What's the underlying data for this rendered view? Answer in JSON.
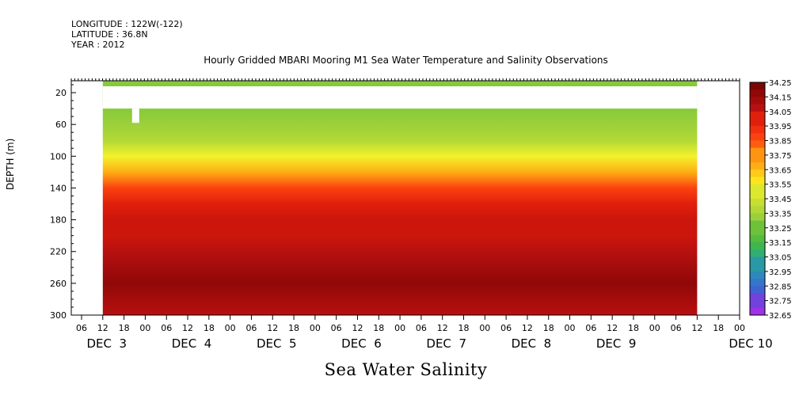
{
  "header": {
    "longitude": "LONGITUDE : 122W(-122)",
    "latitude": "LATITUDE : 36.8N",
    "year": "YEAR : 2012"
  },
  "chart_data": {
    "type": "heatmap",
    "title": "Hourly Gridded MBARI Mooring M1 Sea Water Temperature and Salinity Observations",
    "xlabel": "Sea Water Salinity",
    "ylabel": "DEPTH (m)",
    "y_ticks": [
      20,
      60,
      100,
      140,
      180,
      220,
      260,
      300
    ],
    "ylim": [
      300,
      5
    ],
    "x_hour_ticks": [
      "06",
      "12",
      "18",
      "00",
      "06",
      "12",
      "18",
      "00",
      "06",
      "12",
      "18",
      "00",
      "06",
      "12",
      "18",
      "00",
      "06",
      "12",
      "18",
      "00",
      "06",
      "12",
      "18",
      "00",
      "06",
      "12",
      "18",
      "00",
      "06",
      "12",
      "18",
      "00"
    ],
    "x_day_labels": [
      "DEC  3",
      "DEC  4",
      "DEC  5",
      "DEC  6",
      "DEC  7",
      "DEC  8",
      "DEC  9",
      "DEC 10"
    ],
    "colorbar": {
      "min": 32.65,
      "max": 34.25,
      "step": 0.05,
      "labels": [
        "34.25",
        "34.15",
        "34.05",
        "33.95",
        "33.85",
        "33.75",
        "33.65",
        "33.55",
        "33.45",
        "33.35",
        "33.25",
        "33.15",
        "33.05",
        "32.95",
        "32.85",
        "32.75",
        "32.65"
      ],
      "colors": [
        "#cc22ee",
        "#9d32e6",
        "#7142dc",
        "#5458d6",
        "#3f64d2",
        "#3476cc",
        "#2e88bc",
        "#2a98a6",
        "#29a68e",
        "#2fb070",
        "#3eb650",
        "#55bb3e",
        "#6ec23a",
        "#86c93a",
        "#9cd03a",
        "#b2d836",
        "#c8de32",
        "#dce82e",
        "#f2f22a",
        "#ffe41e",
        "#ffca18",
        "#ffae14",
        "#ff9412",
        "#ff7a10",
        "#ff5e10",
        "#fb4210",
        "#f0300e",
        "#e0200c",
        "#cc160c",
        "#b81010",
        "#a40c0c",
        "#900808",
        "#7c0606"
      ]
    },
    "profile": [
      {
        "depth": 10,
        "value": 33.3
      },
      {
        "depth": 40,
        "value": 33.3
      },
      {
        "depth": 60,
        "value": 33.35
      },
      {
        "depth": 80,
        "value": 33.42
      },
      {
        "depth": 100,
        "value": 33.55
      },
      {
        "depth": 120,
        "value": 33.7
      },
      {
        "depth": 140,
        "value": 33.9
      },
      {
        "depth": 160,
        "value": 34.0
      },
      {
        "depth": 180,
        "value": 34.03
      },
      {
        "depth": 200,
        "value": 34.07
      },
      {
        "depth": 220,
        "value": 34.12
      },
      {
        "depth": 240,
        "value": 34.17
      },
      {
        "depth": 260,
        "value": 34.2
      },
      {
        "depth": 280,
        "value": 34.15
      },
      {
        "depth": 300,
        "value": 34.12
      }
    ],
    "data_start_hour": 12,
    "data_end_hour": 180,
    "missing_depth_range": [
      12,
      40
    ]
  }
}
